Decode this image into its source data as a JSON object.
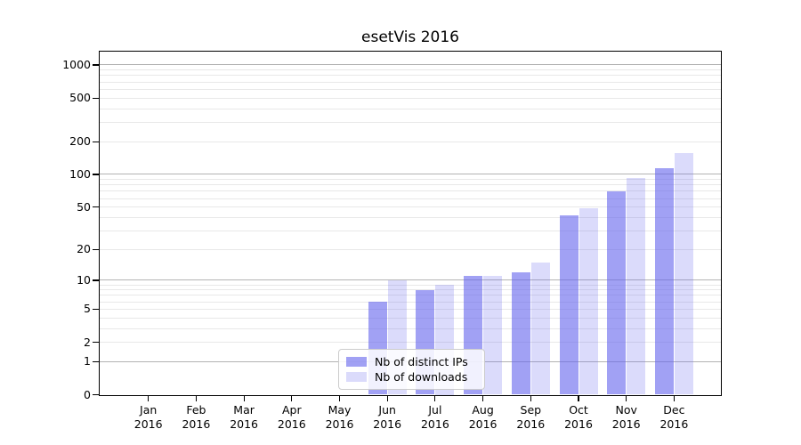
{
  "chart_data": {
    "type": "bar",
    "title": "esetVis 2016",
    "categories": [
      "Jan",
      "Feb",
      "Mar",
      "Apr",
      "May",
      "Jun",
      "Jul",
      "Aug",
      "Sep",
      "Oct",
      "Nov",
      "Dec"
    ],
    "year": "2016",
    "series": [
      {
        "name": "Nb of distinct IPs",
        "values": [
          0,
          0,
          0,
          0,
          0,
          6,
          8,
          11,
          12,
          42,
          70,
          113
        ],
        "fill": "rgba(103,103,238,0.62)"
      },
      {
        "name": "Nb of downloads",
        "values": [
          0,
          0,
          0,
          0,
          0,
          10,
          9,
          11,
          15,
          49,
          92,
          158
        ],
        "fill": "rgba(103,103,238,0.24)"
      }
    ],
    "xlabel": "",
    "ylabel": "",
    "y_axis": {
      "scale": "symlog",
      "tick_values": [
        0,
        1,
        2,
        5,
        10,
        20,
        50,
        100,
        200,
        500,
        1000
      ],
      "major_gridline_values": [
        1,
        10,
        100,
        1000
      ],
      "minor_gridline_decades": [
        1,
        10,
        100
      ],
      "ylim": [
        0,
        1400
      ]
    },
    "legend": {
      "position": "lower center",
      "entries": [
        "Nb of distinct IPs",
        "Nb of downloads"
      ]
    },
    "colors": {
      "bar_base": "#6767ee",
      "ips_fill": "rgba(103,103,238,0.62)",
      "downloads_fill": "rgba(103,103,238,0.24)",
      "gridline_major": "#b3b3b3",
      "gridline_minor": "#e8e8e8",
      "spine": "#000000",
      "background": "#ffffff"
    },
    "grid": true
  }
}
